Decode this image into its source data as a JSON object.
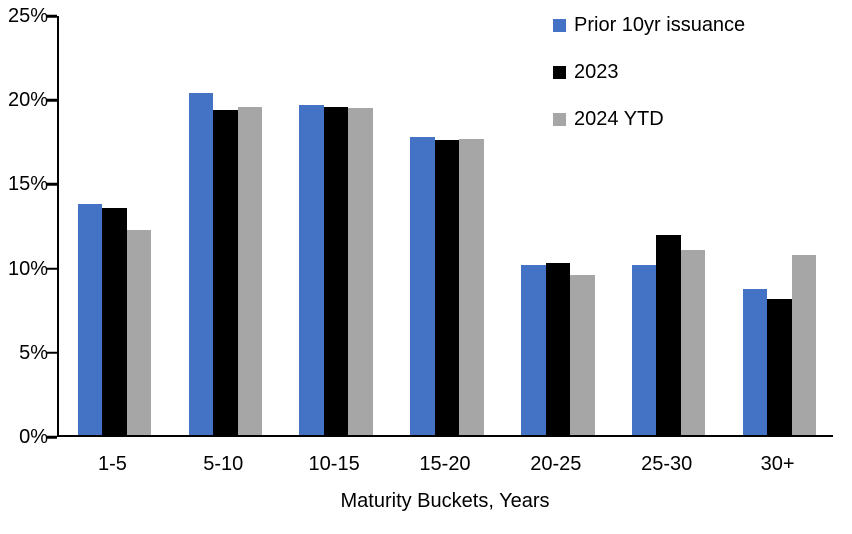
{
  "chart_data": {
    "type": "bar",
    "title": "",
    "xlabel": "Maturity Buckets, Years",
    "ylabel": "",
    "categories": [
      "1-5",
      "5-10",
      "10-15",
      "15-20",
      "20-25",
      "25-30",
      "30+"
    ],
    "series": [
      {
        "name": "Prior 10yr issuance",
        "color": "#4472C4",
        "values": [
          13.7,
          20.3,
          19.6,
          17.7,
          10.1,
          10.1,
          8.7
        ]
      },
      {
        "name": "2023",
        "color": "#000000",
        "values": [
          13.5,
          19.3,
          19.5,
          17.5,
          10.2,
          11.9,
          8.1
        ]
      },
      {
        "name": "2024 YTD",
        "color": "#A6A6A6",
        "values": [
          12.2,
          19.5,
          19.4,
          17.6,
          9.5,
          11.0,
          10.7
        ]
      }
    ],
    "ylim": [
      0,
      25
    ],
    "yticks": [
      0,
      5,
      10,
      15,
      20,
      25
    ],
    "ytick_suffix": "%",
    "grid": false,
    "background": "#ffffff",
    "legend_position": "top-right"
  }
}
